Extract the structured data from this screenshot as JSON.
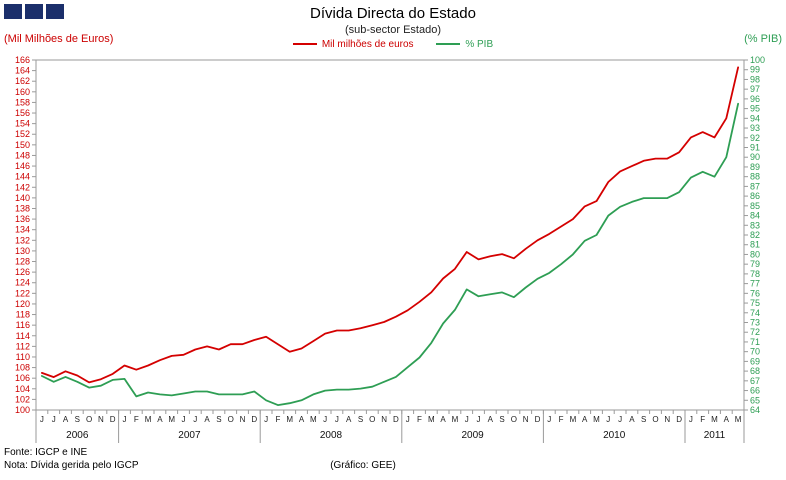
{
  "logo": {
    "squares": 3,
    "color": "#1b2f6b"
  },
  "chart_data": {
    "type": "line",
    "title": "Dívida Directa do Estado",
    "subtitle": "(sub-sector  Estado)",
    "source_note": "Fonte: IGCP e INE",
    "note": "Nota: Dívida gerida pelo IGCP",
    "credit": "(Gráfico: GEE)",
    "legend_position": "top-center",
    "grid": false,
    "left_axis": {
      "label": "(Mil Milhões de Euros)",
      "min": 100,
      "max": 166,
      "step": 2,
      "color": "#cc0000"
    },
    "right_axis": {
      "label": "(% PIB)",
      "min": 64,
      "max": 100,
      "step": 1,
      "color": "#2e9e54"
    },
    "x": {
      "month_labels": [
        "J",
        "J",
        "A",
        "S",
        "O",
        "N",
        "D",
        "J",
        "F",
        "M",
        "A",
        "M",
        "J",
        "J",
        "A",
        "S",
        "O",
        "N",
        "D",
        "J",
        "F",
        "M",
        "A",
        "M",
        "J",
        "J",
        "A",
        "S",
        "O",
        "N",
        "D",
        "J",
        "F",
        "M",
        "A",
        "M",
        "J",
        "J",
        "A",
        "S",
        "O",
        "N",
        "D",
        "J",
        "F",
        "M",
        "A",
        "M",
        "J",
        "J",
        "A",
        "S",
        "O",
        "N",
        "D",
        "J",
        "F",
        "M",
        "A",
        "M"
      ],
      "year_groups": [
        {
          "label": "2006",
          "count": 7
        },
        {
          "label": "2007",
          "count": 12
        },
        {
          "label": "2008",
          "count": 12
        },
        {
          "label": "2009",
          "count": 12
        },
        {
          "label": "2010",
          "count": 12
        },
        {
          "label": "2011",
          "count": 5
        }
      ]
    },
    "series": [
      {
        "name": "Mil milhões de euros",
        "axis": "left",
        "color": "#d40000",
        "values": [
          107.0,
          106.2,
          107.3,
          106.5,
          105.2,
          105.8,
          106.8,
          108.4,
          107.6,
          108.4,
          109.4,
          110.2,
          110.4,
          111.4,
          112.0,
          111.4,
          112.4,
          112.4,
          113.2,
          113.8,
          112.4,
          111.0,
          111.6,
          113.0,
          114.4,
          115.0,
          115.0,
          115.4,
          116.0,
          116.6,
          117.6,
          118.8,
          120.4,
          122.2,
          124.8,
          126.6,
          129.8,
          128.4,
          129.0,
          129.4,
          128.6,
          130.4,
          132.0,
          133.2,
          134.6,
          136.0,
          138.4,
          139.4,
          143.0,
          145.0,
          146.0,
          147.0,
          147.4,
          147.4,
          148.6,
          151.4,
          152.4,
          151.4,
          155.0,
          164.6
        ]
      },
      {
        "name": "% PIB",
        "axis": "right",
        "color": "#2e9e54",
        "values": [
          67.5,
          66.9,
          67.4,
          66.9,
          66.3,
          66.5,
          67.1,
          67.2,
          65.4,
          65.8,
          65.6,
          65.5,
          65.7,
          65.9,
          65.9,
          65.6,
          65.6,
          65.6,
          65.9,
          65.0,
          64.5,
          64.7,
          65.0,
          65.6,
          66.0,
          66.1,
          66.1,
          66.2,
          66.4,
          66.9,
          67.4,
          68.4,
          69.4,
          70.9,
          72.9,
          74.3,
          76.4,
          75.7,
          75.9,
          76.1,
          75.6,
          76.6,
          77.5,
          78.1,
          79.0,
          80.0,
          81.4,
          82.0,
          84.0,
          84.9,
          85.4,
          85.8,
          85.8,
          85.8,
          86.4,
          87.9,
          88.5,
          88.0,
          90.0,
          95.5
        ]
      }
    ]
  }
}
